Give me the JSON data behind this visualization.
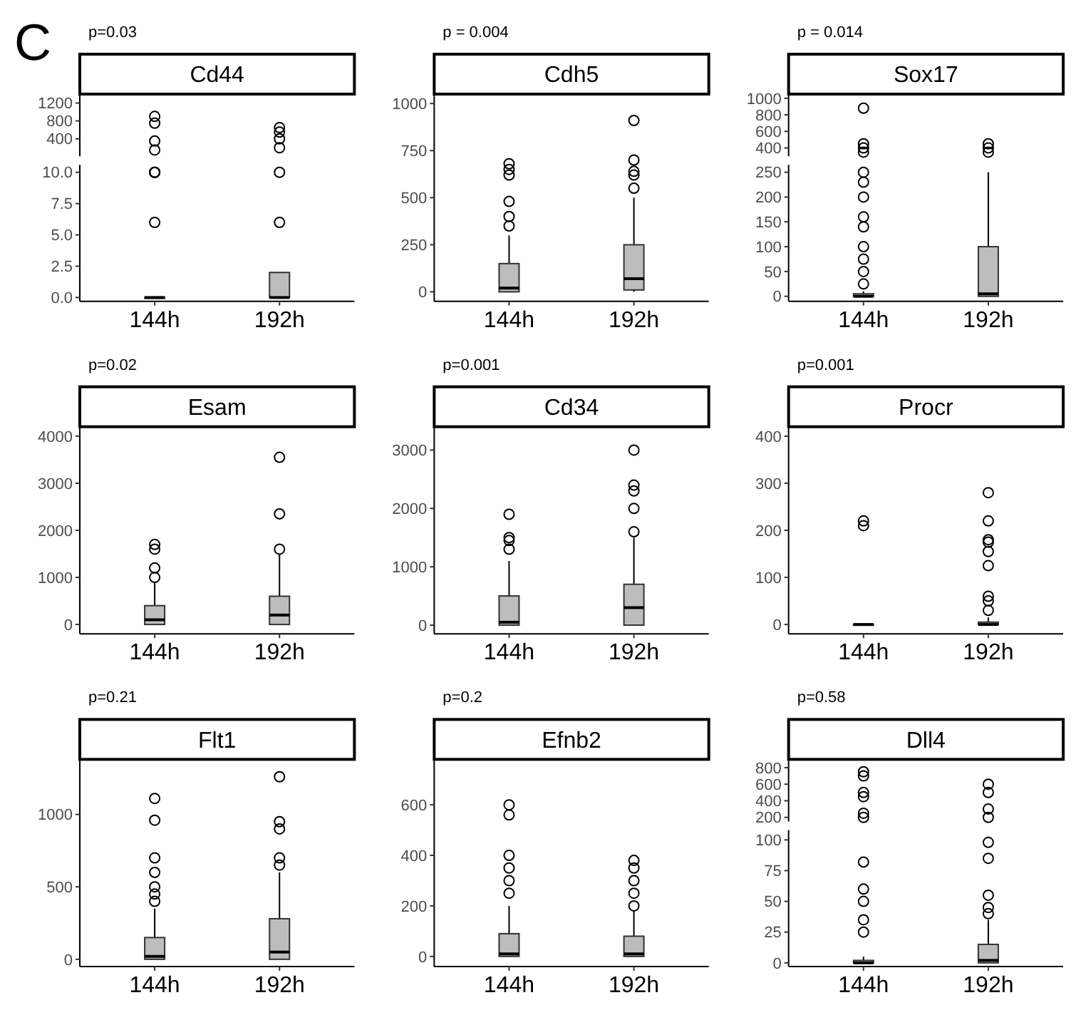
{
  "chart_data": [
    {
      "type": "scatter",
      "title": "Cd44",
      "annotations": [
        "C",
        "p=0.03"
      ],
      "categories": [
        "144h",
        "192h"
      ],
      "ylim": [
        10,
        1400
      ],
      "yticks": [
        400,
        800,
        1200
      ],
      "tick_labels": "y",
      "marker": "circle",
      "series": [
        {
          "x": [
            "144h",
            "144h",
            "144h",
            "144h",
            "192h",
            "192h",
            "192h",
            "192h"
          ],
          "values": [
            900,
            750,
            350,
            150,
            650,
            550,
            400,
            200
          ]
        }
      ]
    },
    {
      "type": "box",
      "categories": [
        "144h",
        "192h"
      ],
      "ylim": [
        -0.3,
        10.6
      ],
      "yticks": [
        {
          "value": 0,
          "label": "0.0"
        },
        {
          "value": 2.5,
          "label": "2.5"
        },
        {
          "value": 5,
          "label": "5.0"
        },
        {
          "value": 7.5,
          "label": "7.5"
        },
        {
          "value": 10,
          "label": "10.0"
        }
      ],
      "boxes": [
        {
          "low": 0,
          "q1": 0,
          "median": 0,
          "q3": 0,
          "high": 0,
          "outliers": [
            6,
            10,
            10,
            10
          ]
        },
        {
          "low": 0,
          "q1": 0,
          "median": 0,
          "q3": 2,
          "high": 2,
          "outliers": [
            6,
            10
          ]
        }
      ]
    },
    {
      "type": "box",
      "title": "Cdh5",
      "annotations": [
        "p = 0.004"
      ],
      "categories": [
        "144h",
        "192h"
      ],
      "ylim": [
        -50,
        1050
      ],
      "yticks": [
        0,
        250,
        500,
        750,
        1000
      ],
      "boxes": [
        {
          "low": 0,
          "q1": 0,
          "median": 20,
          "q3": 150,
          "high": 300,
          "outliers": [
            350,
            400,
            480,
            620,
            650,
            680
          ]
        },
        {
          "low": 0,
          "q1": 10,
          "median": 70,
          "q3": 250,
          "high": 500,
          "outliers": [
            550,
            620,
            640,
            700,
            910
          ]
        }
      ]
    },
    {
      "type": "scatter",
      "title": "Sox17",
      "annotations": [
        "p = 0.014"
      ],
      "categories": [
        "144h",
        "192h"
      ],
      "ylim": [
        300,
        1050
      ],
      "yticks": [
        400,
        600,
        800,
        1000
      ],
      "tick_labels": "y",
      "marker": "circle",
      "series": [
        {
          "x": [
            "144h",
            "144h",
            "144h",
            "144h",
            "192h",
            "192h",
            "192h"
          ],
          "values": [
            350,
            400,
            450,
            880,
            350,
            400,
            450
          ]
        }
      ]
    },
    {
      "type": "box",
      "categories": [
        "144h",
        "192h"
      ],
      "ylim": [
        -10,
        265
      ],
      "yticks": [
        0,
        50,
        100,
        150,
        200,
        250
      ],
      "boxes": [
        {
          "low": 0,
          "q1": 0,
          "median": 0,
          "q3": 5,
          "high": 10,
          "outliers": [
            25,
            50,
            75,
            100,
            140,
            160,
            200,
            230,
            250
          ]
        },
        {
          "low": 0,
          "q1": 0,
          "median": 5,
          "q3": 100,
          "high": 250
        }
      ]
    },
    {
      "type": "box",
      "title": "Esam",
      "annotations": [
        "p=0.02"
      ],
      "categories": [
        "144h",
        "192h"
      ],
      "ylim": [
        -200,
        4200
      ],
      "yticks": [
        0,
        1000,
        2000,
        3000,
        4000
      ],
      "boxes": [
        {
          "low": 0,
          "q1": 0,
          "median": 100,
          "q3": 400,
          "high": 900,
          "outliers": [
            1000,
            1200,
            1600,
            1700
          ]
        },
        {
          "low": 0,
          "q1": 0,
          "median": 200,
          "q3": 600,
          "high": 1500,
          "outliers": [
            1600,
            2350,
            3550
          ]
        }
      ]
    },
    {
      "type": "box",
      "title": "Cd34",
      "annotations": [
        "p=0.001"
      ],
      "categories": [
        "144h",
        "192h"
      ],
      "ylim": [
        -150,
        3400
      ],
      "yticks": [
        0,
        1000,
        2000,
        3000
      ],
      "boxes": [
        {
          "low": 0,
          "q1": 0,
          "median": 50,
          "q3": 500,
          "high": 1100,
          "outliers": [
            1300,
            1450,
            1500,
            1900
          ]
        },
        {
          "low": 0,
          "q1": 0,
          "median": 300,
          "q3": 700,
          "high": 1500,
          "outliers": [
            1600,
            2000,
            2300,
            2400,
            3000
          ]
        }
      ]
    },
    {
      "type": "box",
      "title": "Procr",
      "annotations": [
        "p=0.001"
      ],
      "categories": [
        "144h",
        "192h"
      ],
      "ylim": [
        -20,
        420
      ],
      "yticks": [
        0,
        100,
        200,
        300,
        400
      ],
      "boxes": [
        {
          "low": 0,
          "q1": 0,
          "median": 0,
          "q3": 0,
          "high": 0,
          "outliers": [
            210,
            220
          ]
        },
        {
          "low": 0,
          "q1": 0,
          "median": 0,
          "q3": 5,
          "high": 15,
          "outliers": [
            30,
            50,
            60,
            125,
            155,
            175,
            180,
            220,
            280
          ]
        }
      ]
    },
    {
      "type": "box",
      "title": "Flt1",
      "annotations": [
        "p=0.21"
      ],
      "categories": [
        "144h",
        "192h"
      ],
      "ylim": [
        -50,
        1380
      ],
      "yticks": [
        0,
        500,
        1000
      ],
      "boxes": [
        {
          "low": 0,
          "q1": 0,
          "median": 20,
          "q3": 150,
          "high": 350,
          "outliers": [
            400,
            450,
            500,
            600,
            700,
            960,
            1110
          ]
        },
        {
          "low": 0,
          "q1": 0,
          "median": 50,
          "q3": 280,
          "high": 600,
          "outliers": [
            650,
            700,
            900,
            950,
            1260
          ]
        }
      ]
    },
    {
      "type": "box",
      "title": "Efnb2",
      "annotations": [
        "p=0.2"
      ],
      "categories": [
        "144h",
        "192h"
      ],
      "ylim": [
        -40,
        780
      ],
      "yticks": [
        0,
        200,
        400,
        600
      ],
      "boxes": [
        {
          "low": 0,
          "q1": 0,
          "median": 10,
          "q3": 90,
          "high": 200,
          "outliers": [
            250,
            300,
            350,
            400,
            560,
            600
          ]
        },
        {
          "low": 0,
          "q1": 0,
          "median": 10,
          "q3": 80,
          "high": 180,
          "outliers": [
            200,
            250,
            300,
            350,
            380
          ]
        }
      ]
    },
    {
      "type": "scatter",
      "title": "Dll4",
      "annotations": [
        "p=0.58"
      ],
      "categories": [
        "144h",
        "192h"
      ],
      "ylim": [
        150,
        900
      ],
      "yticks": [
        200,
        400,
        600,
        800
      ],
      "tick_labels": "y",
      "marker": "circle",
      "series": [
        {
          "x": [
            "144h",
            "144h",
            "144h",
            "144h",
            "144h",
            "144h",
            "192h",
            "192h",
            "192h",
            "192h"
          ],
          "values": [
            200,
            250,
            450,
            500,
            700,
            750,
            200,
            300,
            500,
            600
          ]
        }
      ]
    },
    {
      "type": "box",
      "categories": [
        "144h",
        "192h"
      ],
      "ylim": [
        -3,
        108
      ],
      "yticks": [
        0,
        25,
        50,
        75,
        100
      ],
      "boxes": [
        {
          "low": 0,
          "q1": 0,
          "median": 0,
          "q3": 2,
          "high": 5,
          "outliers": [
            25,
            35,
            50,
            60,
            82
          ]
        },
        {
          "low": 0,
          "q1": 0,
          "median": 2,
          "q3": 15,
          "high": 35,
          "outliers": [
            40,
            45,
            55,
            85,
            98
          ]
        }
      ]
    }
  ]
}
